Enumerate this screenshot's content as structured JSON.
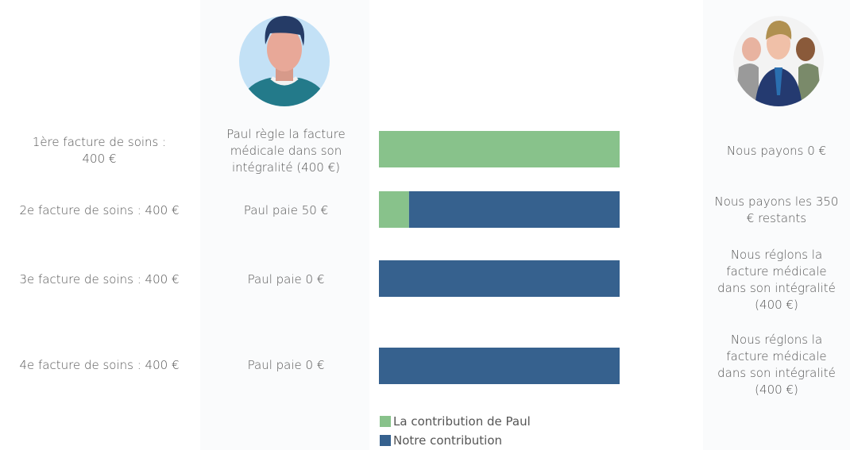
{
  "rows": [
    {
      "invoice": "1ère facture de soins : 400 €",
      "paul": "Paul règle la facture médicale dans son intégralité (400 €)",
      "us": "Nous payons 0 €"
    },
    {
      "invoice": "2e facture de soins : 400 €",
      "paul": "Paul paie 50 €",
      "us": "Nous payons les 350 € restants"
    },
    {
      "invoice": "3e facture de soins : 400 €",
      "paul": "Paul paie 0 €",
      "us": "Nous réglons la facture médicale dans son intégralité (400 €)"
    },
    {
      "invoice": "4e facture de soins : 400 €",
      "paul": "Paul paie 0 €",
      "us": "Nous réglons la facture médicale dans son intégralité (400 €)"
    }
  ],
  "chart_data": {
    "type": "bar",
    "orientation": "horizontal",
    "stacked": true,
    "xlim": [
      0,
      400
    ],
    "series": [
      {
        "name": "La contribution de Paul",
        "color": "#88c28b",
        "values": [
          400,
          50,
          0,
          0
        ]
      },
      {
        "name": "Notre contribution",
        "color": "#36618e",
        "values": [
          0,
          350,
          400,
          400
        ]
      }
    ]
  }
}
